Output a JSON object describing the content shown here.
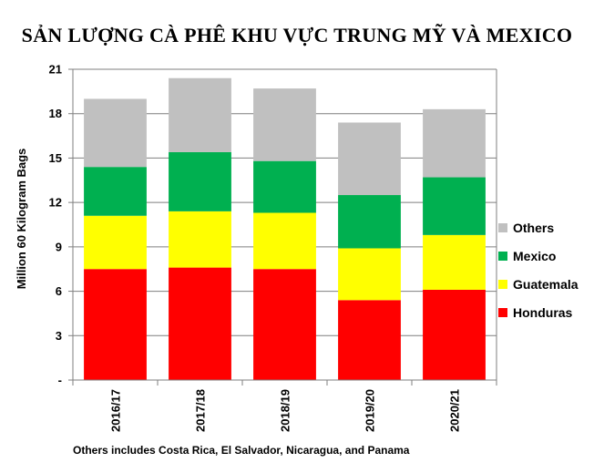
{
  "chart_data": {
    "type": "bar",
    "stacked": true,
    "title": "SẢN LƯỢNG CÀ PHÊ KHU VỰC TRUNG MỸ VÀ MEXICO",
    "xlabel": "",
    "ylabel": "Million 60 Kilogram Bags",
    "categories": [
      "2016/17",
      "2017/18",
      "2018/19",
      "2019/20",
      "2020/21"
    ],
    "ylim": [
      0,
      21
    ],
    "yticks": [
      0,
      3,
      6,
      9,
      12,
      15,
      18,
      21
    ],
    "ytick_labels": [
      "-",
      "3",
      "6",
      "9",
      "12",
      "15",
      "18",
      "21"
    ],
    "grid": true,
    "legend_position": "right",
    "legend_order": [
      "Others",
      "Mexico",
      "Guatemala",
      "Honduras"
    ],
    "series": [
      {
        "name": "Honduras",
        "color": "#FF0000",
        "values": [
          7.5,
          7.6,
          7.5,
          5.4,
          6.1
        ]
      },
      {
        "name": "Guatemala",
        "color": "#FFFF00",
        "values": [
          3.6,
          3.8,
          3.8,
          3.5,
          3.7
        ]
      },
      {
        "name": "Mexico",
        "color": "#00B050",
        "values": [
          3.3,
          4.0,
          3.5,
          3.6,
          3.9
        ]
      },
      {
        "name": "Others",
        "color": "#C0C0C0",
        "values": [
          4.6,
          5.0,
          4.9,
          4.9,
          4.6
        ]
      }
    ],
    "footnote": "Others includes Costa Rica, El Salvador, Nicaragua, and Panama"
  }
}
